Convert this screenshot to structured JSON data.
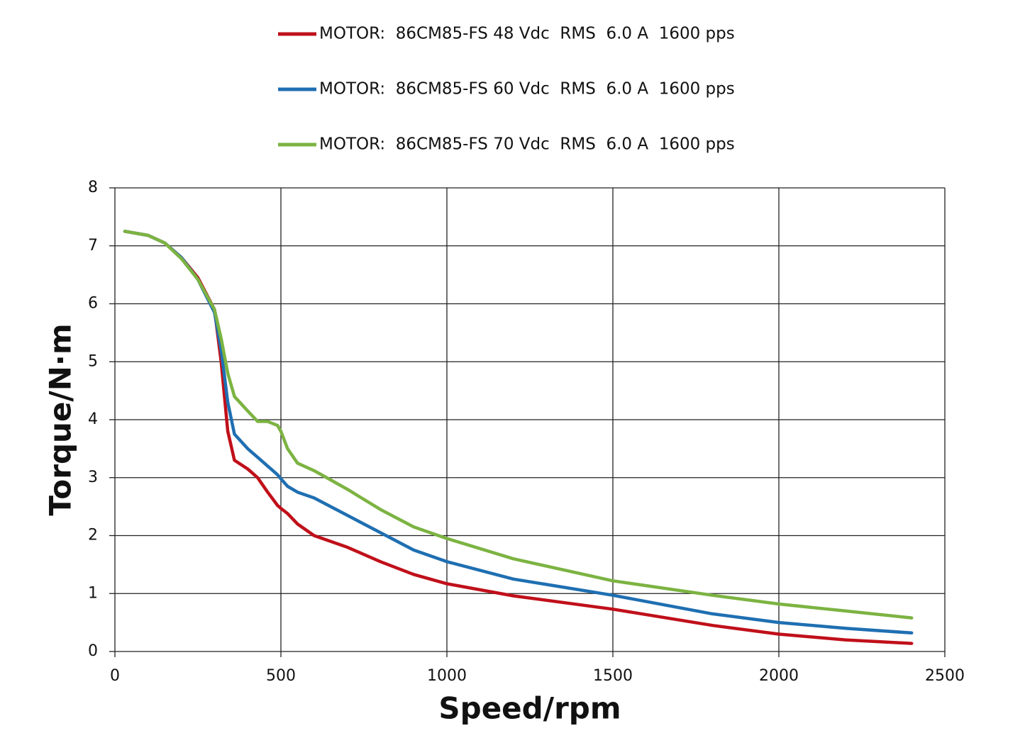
{
  "chart_data": {
    "type": "line",
    "x_label": "Speed/rpm",
    "y_label": "Torque/N·m",
    "x": [
      30,
      100,
      150,
      200,
      250,
      300,
      320,
      340,
      360,
      400,
      430,
      460,
      490,
      500,
      520,
      550,
      600,
      700,
      800,
      900,
      1000,
      1200,
      1500,
      1800,
      2000,
      2200,
      2400
    ],
    "series": [
      {
        "name": "MOTOR:  86CM85-FS 48 Vdc  RMS  6.0 A  1600 pps",
        "color": "#c0101a",
        "values": [
          7.25,
          7.18,
          7.05,
          6.8,
          6.45,
          5.9,
          5.0,
          3.8,
          3.3,
          3.15,
          3.0,
          2.75,
          2.52,
          2.47,
          2.38,
          2.2,
          2.0,
          1.8,
          1.55,
          1.33,
          1.17,
          0.96,
          0.73,
          0.45,
          0.3,
          0.2,
          0.14
        ]
      },
      {
        "name": "MOTOR:  86CM85-FS 60 Vdc  RMS  6.0 A  1600 pps",
        "color": "#1f6fb2",
        "values": [
          7.25,
          7.18,
          7.05,
          6.8,
          6.42,
          5.85,
          5.2,
          4.3,
          3.75,
          3.5,
          3.35,
          3.2,
          3.05,
          2.98,
          2.85,
          2.75,
          2.65,
          2.35,
          2.05,
          1.75,
          1.55,
          1.25,
          0.97,
          0.65,
          0.5,
          0.4,
          0.32
        ]
      },
      {
        "name": "MOTOR:  86CM85-FS 70 Vdc  RMS  6.0 A  1600 pps",
        "color": "#7cb342",
        "values": [
          7.25,
          7.18,
          7.05,
          6.78,
          6.42,
          5.9,
          5.4,
          4.8,
          4.4,
          4.15,
          3.97,
          3.97,
          3.9,
          3.8,
          3.5,
          3.25,
          3.12,
          2.8,
          2.45,
          2.15,
          1.95,
          1.6,
          1.22,
          0.97,
          0.82,
          0.7,
          0.58
        ]
      }
    ],
    "xlim": [
      0,
      2500
    ],
    "xticks": [
      0,
      500,
      1000,
      1500,
      2000,
      2500
    ],
    "ylim": [
      0,
      8
    ],
    "yticks": [
      0,
      1,
      2,
      3,
      4,
      5,
      6,
      7,
      8
    ],
    "grid": true,
    "legend": "top"
  }
}
